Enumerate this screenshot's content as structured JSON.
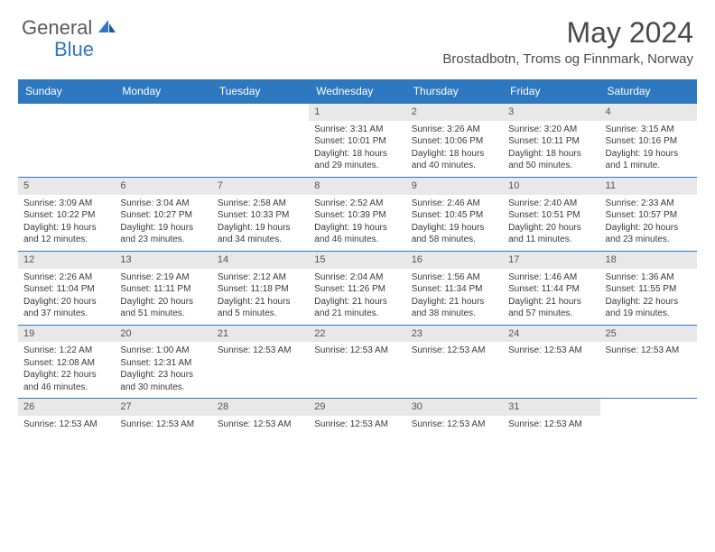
{
  "logo": {
    "part1": "General",
    "part2": "Blue"
  },
  "title": "May 2024",
  "location": "Brostadbotn, Troms og Finnmark, Norway",
  "colors": {
    "header_bg": "#2d78bf",
    "header_text": "#ffffff",
    "daynum_bg": "#e8e8e8",
    "text": "#3a3a3a",
    "row_border": "#2d78bf"
  },
  "day_headers": [
    "Sunday",
    "Monday",
    "Tuesday",
    "Wednesday",
    "Thursday",
    "Friday",
    "Saturday"
  ],
  "weeks": [
    [
      {
        "empty": true
      },
      {
        "empty": true
      },
      {
        "empty": true
      },
      {
        "num": "1",
        "lines": [
          "Sunrise: 3:31 AM",
          "Sunset: 10:01 PM",
          "Daylight: 18 hours",
          "and 29 minutes."
        ]
      },
      {
        "num": "2",
        "lines": [
          "Sunrise: 3:26 AM",
          "Sunset: 10:06 PM",
          "Daylight: 18 hours",
          "and 40 minutes."
        ]
      },
      {
        "num": "3",
        "lines": [
          "Sunrise: 3:20 AM",
          "Sunset: 10:11 PM",
          "Daylight: 18 hours",
          "and 50 minutes."
        ]
      },
      {
        "num": "4",
        "lines": [
          "Sunrise: 3:15 AM",
          "Sunset: 10:16 PM",
          "Daylight: 19 hours",
          "and 1 minute."
        ]
      }
    ],
    [
      {
        "num": "5",
        "lines": [
          "Sunrise: 3:09 AM",
          "Sunset: 10:22 PM",
          "Daylight: 19 hours",
          "and 12 minutes."
        ]
      },
      {
        "num": "6",
        "lines": [
          "Sunrise: 3:04 AM",
          "Sunset: 10:27 PM",
          "Daylight: 19 hours",
          "and 23 minutes."
        ]
      },
      {
        "num": "7",
        "lines": [
          "Sunrise: 2:58 AM",
          "Sunset: 10:33 PM",
          "Daylight: 19 hours",
          "and 34 minutes."
        ]
      },
      {
        "num": "8",
        "lines": [
          "Sunrise: 2:52 AM",
          "Sunset: 10:39 PM",
          "Daylight: 19 hours",
          "and 46 minutes."
        ]
      },
      {
        "num": "9",
        "lines": [
          "Sunrise: 2:46 AM",
          "Sunset: 10:45 PM",
          "Daylight: 19 hours",
          "and 58 minutes."
        ]
      },
      {
        "num": "10",
        "lines": [
          "Sunrise: 2:40 AM",
          "Sunset: 10:51 PM",
          "Daylight: 20 hours",
          "and 11 minutes."
        ]
      },
      {
        "num": "11",
        "lines": [
          "Sunrise: 2:33 AM",
          "Sunset: 10:57 PM",
          "Daylight: 20 hours",
          "and 23 minutes."
        ]
      }
    ],
    [
      {
        "num": "12",
        "lines": [
          "Sunrise: 2:26 AM",
          "Sunset: 11:04 PM",
          "Daylight: 20 hours",
          "and 37 minutes."
        ]
      },
      {
        "num": "13",
        "lines": [
          "Sunrise: 2:19 AM",
          "Sunset: 11:11 PM",
          "Daylight: 20 hours",
          "and 51 minutes."
        ]
      },
      {
        "num": "14",
        "lines": [
          "Sunrise: 2:12 AM",
          "Sunset: 11:18 PM",
          "Daylight: 21 hours",
          "and 5 minutes."
        ]
      },
      {
        "num": "15",
        "lines": [
          "Sunrise: 2:04 AM",
          "Sunset: 11:26 PM",
          "Daylight: 21 hours",
          "and 21 minutes."
        ]
      },
      {
        "num": "16",
        "lines": [
          "Sunrise: 1:56 AM",
          "Sunset: 11:34 PM",
          "Daylight: 21 hours",
          "and 38 minutes."
        ]
      },
      {
        "num": "17",
        "lines": [
          "Sunrise: 1:46 AM",
          "Sunset: 11:44 PM",
          "Daylight: 21 hours",
          "and 57 minutes."
        ]
      },
      {
        "num": "18",
        "lines": [
          "Sunrise: 1:36 AM",
          "Sunset: 11:55 PM",
          "Daylight: 22 hours",
          "and 19 minutes."
        ]
      }
    ],
    [
      {
        "num": "19",
        "lines": [
          "Sunrise: 1:22 AM",
          "Sunset: 12:08 AM",
          "Daylight: 22 hours",
          "and 46 minutes."
        ]
      },
      {
        "num": "20",
        "lines": [
          "Sunrise: 1:00 AM",
          "Sunset: 12:31 AM",
          "Daylight: 23 hours",
          "and 30 minutes."
        ]
      },
      {
        "num": "21",
        "lines": [
          "Sunrise: 12:53 AM"
        ]
      },
      {
        "num": "22",
        "lines": [
          "Sunrise: 12:53 AM"
        ]
      },
      {
        "num": "23",
        "lines": [
          "Sunrise: 12:53 AM"
        ]
      },
      {
        "num": "24",
        "lines": [
          "Sunrise: 12:53 AM"
        ]
      },
      {
        "num": "25",
        "lines": [
          "Sunrise: 12:53 AM"
        ]
      }
    ],
    [
      {
        "num": "26",
        "lines": [
          "Sunrise: 12:53 AM"
        ]
      },
      {
        "num": "27",
        "lines": [
          "Sunrise: 12:53 AM"
        ]
      },
      {
        "num": "28",
        "lines": [
          "Sunrise: 12:53 AM"
        ]
      },
      {
        "num": "29",
        "lines": [
          "Sunrise: 12:53 AM"
        ]
      },
      {
        "num": "30",
        "lines": [
          "Sunrise: 12:53 AM"
        ]
      },
      {
        "num": "31",
        "lines": [
          "Sunrise: 12:53 AM"
        ]
      },
      {
        "empty": true
      }
    ]
  ]
}
